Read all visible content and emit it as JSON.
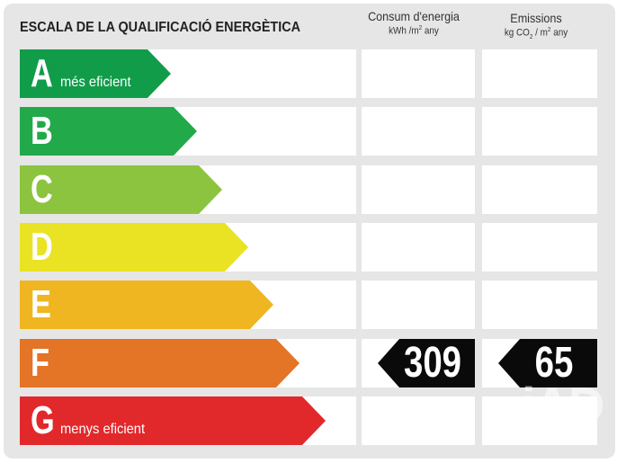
{
  "title": "ESCALA DE LA QUALIFICACIÓ ENERGÈTICA",
  "columns": {
    "energy": {
      "label": "Consum d'energia",
      "unit_pre": "kWh /m",
      "unit_sup": "2",
      "unit_post": " any"
    },
    "emissions": {
      "label": "Emissions",
      "unit_pre": "kg CO",
      "unit_sub": "2",
      "unit_mid": " / m",
      "unit_sup": "2",
      "unit_post": " any"
    }
  },
  "ratings": [
    {
      "letter": "A",
      "label": "més eficient",
      "color": "#119c4a"
    },
    {
      "letter": "B",
      "label": "",
      "color": "#22a94a"
    },
    {
      "letter": "C",
      "label": "",
      "color": "#8cc43f"
    },
    {
      "letter": "D",
      "label": "",
      "color": "#e9e323"
    },
    {
      "letter": "E",
      "label": "",
      "color": "#efb621"
    },
    {
      "letter": "F",
      "label": "",
      "color": "#e47426"
    },
    {
      "letter": "G",
      "label": "menys eficient",
      "color": "#e1292c"
    }
  ],
  "result": {
    "rating": "F",
    "energy_value": "309",
    "emissions_value": "65"
  },
  "watermark": {
    "text": "iAD",
    "sub": "TE"
  }
}
